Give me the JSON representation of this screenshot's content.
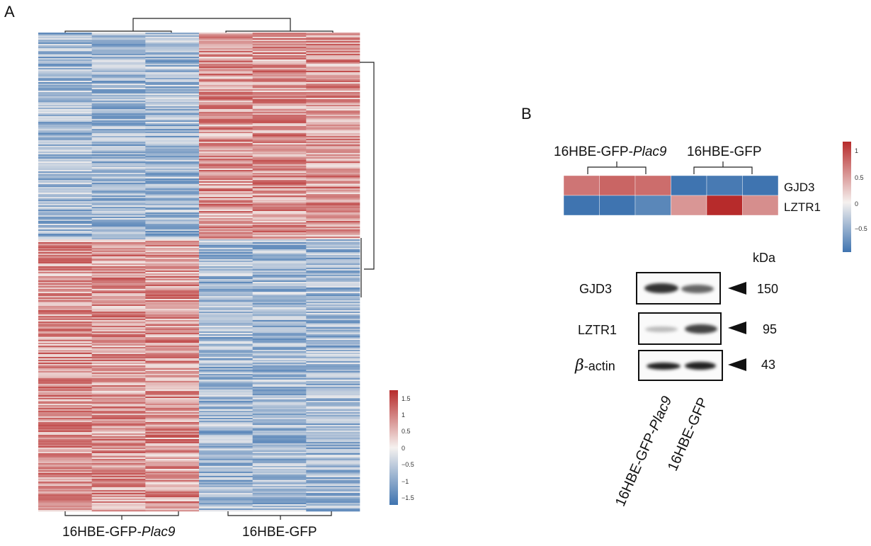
{
  "figure": {
    "panel_a_letter": "A",
    "panel_b_letter": "B"
  },
  "panel_a": {
    "group_labels": [
      {
        "prefix": "16HBE-GFP-",
        "italic": "Plac9"
      },
      {
        "prefix": "16HBE-GFP",
        "italic": ""
      }
    ],
    "color_scale": {
      "ticks": [
        "1.5",
        "1",
        "0.5",
        "0",
        "−0.5",
        "−1",
        "−1.5"
      ],
      "min": -1.7,
      "max": 1.7,
      "low_color": "#3f74b0",
      "mid_color": "#f5f1ef",
      "high_color": "#b72b2b"
    }
  },
  "panel_b": {
    "group_labels": [
      {
        "prefix": "16HBE-GFP-",
        "italic": "Plac9"
      },
      {
        "prefix": "16HBE-GFP",
        "italic": ""
      }
    ],
    "genes": [
      "GJD3",
      "LZTR1"
    ],
    "values": [
      [
        0.75,
        0.85,
        0.8,
        -1.0,
        -0.95,
        -1.0
      ],
      [
        -1.0,
        -1.0,
        -0.85,
        0.55,
        1.2,
        0.6
      ]
    ],
    "color_scale": {
      "ticks": [
        "1",
        "0.5",
        "0",
        "−0.5"
      ],
      "min": -1.0,
      "max": 1.2
    },
    "blot": {
      "kda_label": "kDa",
      "rows": [
        {
          "label": "GJD3",
          "kda": "150"
        },
        {
          "label": "LZTR1",
          "kda": "95"
        },
        {
          "label_greek": "β",
          "label": "-actin",
          "kda": "43"
        }
      ],
      "lane_labels": [
        {
          "prefix": "16HBE-GFP-",
          "italic": "Plac9"
        },
        {
          "prefix": "16HBE-GFP",
          "italic": ""
        }
      ]
    }
  }
}
